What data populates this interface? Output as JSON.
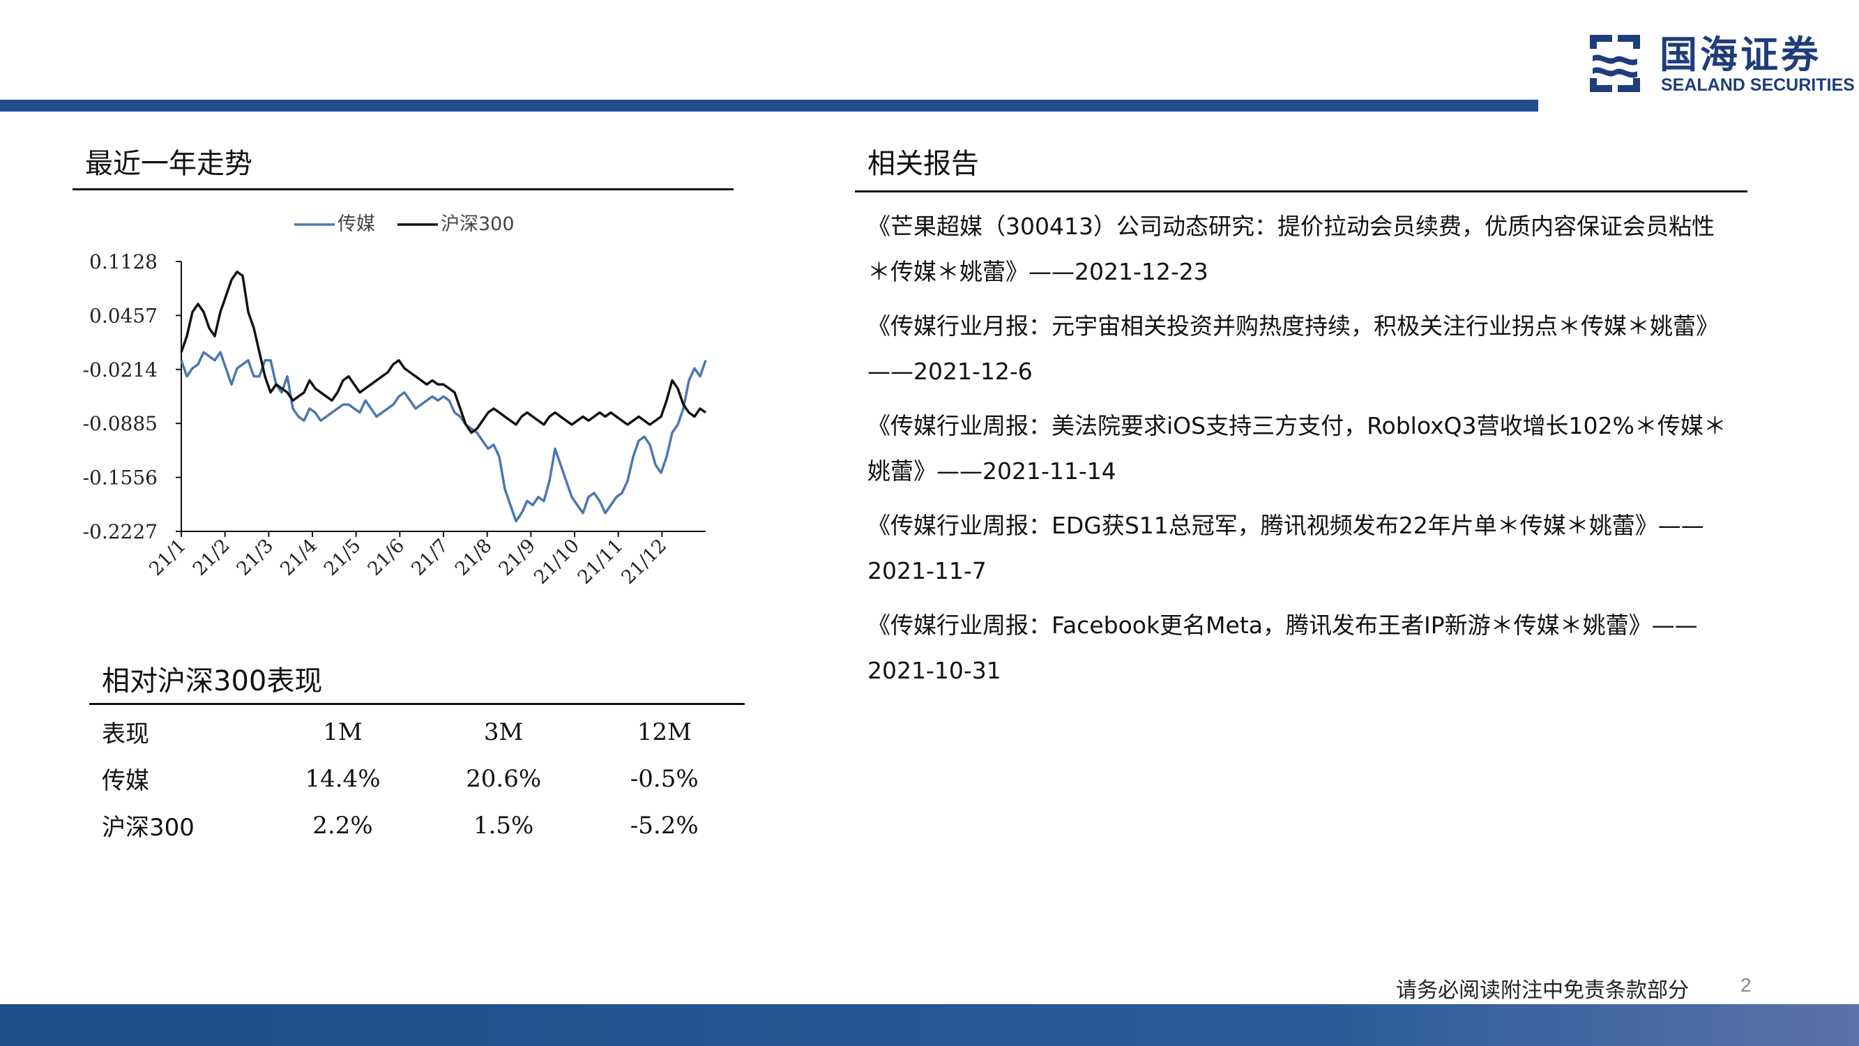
{
  "brand": {
    "name_cn": "国海证券",
    "name_en": "SEALAND SECURITIES",
    "primary_color": "#1f4e8c"
  },
  "trend_section": {
    "title": "最近一年走势"
  },
  "chart_data": {
    "type": "line",
    "title": "",
    "xlabel": "",
    "ylabel": "",
    "x_tick_labels": [
      "21/1",
      "21/2",
      "21/3",
      "21/4",
      "21/5",
      "21/6",
      "21/7",
      "21/8",
      "21/9",
      "21/10",
      "21/11",
      "21/12"
    ],
    "y_tick_labels": [
      "0.1128",
      "0.0457",
      "-0.0214",
      "-0.0885",
      "-0.1556",
      "-0.2227"
    ],
    "ylim": [
      -0.2227,
      0.1128
    ],
    "legend_position": "top-center",
    "grid": false,
    "series": [
      {
        "name": "传媒",
        "color": "#4a78b0",
        "values": [
          -0.01,
          -0.03,
          -0.02,
          -0.015,
          0.0,
          -0.005,
          -0.01,
          0.0,
          -0.02,
          -0.04,
          -0.02,
          -0.015,
          -0.01,
          -0.03,
          -0.03,
          -0.01,
          -0.01,
          -0.04,
          -0.05,
          -0.03,
          -0.07,
          -0.08,
          -0.085,
          -0.07,
          -0.075,
          -0.085,
          -0.08,
          -0.075,
          -0.07,
          -0.065,
          -0.065,
          -0.07,
          -0.075,
          -0.06,
          -0.07,
          -0.08,
          -0.075,
          -0.07,
          -0.065,
          -0.055,
          -0.05,
          -0.06,
          -0.07,
          -0.065,
          -0.06,
          -0.055,
          -0.06,
          -0.055,
          -0.06,
          -0.075,
          -0.08,
          -0.09,
          -0.095,
          -0.1,
          -0.11,
          -0.12,
          -0.115,
          -0.13,
          -0.17,
          -0.19,
          -0.21,
          -0.2,
          -0.185,
          -0.19,
          -0.18,
          -0.185,
          -0.16,
          -0.12,
          -0.14,
          -0.16,
          -0.18,
          -0.19,
          -0.2,
          -0.18,
          -0.175,
          -0.185,
          -0.2,
          -0.19,
          -0.18,
          -0.175,
          -0.16,
          -0.13,
          -0.11,
          -0.105,
          -0.115,
          -0.14,
          -0.15,
          -0.13,
          -0.1,
          -0.09,
          -0.07,
          -0.035,
          -0.02,
          -0.03,
          -0.01
        ]
      },
      {
        "name": "沪深300",
        "color": "#111111",
        "values": [
          0.0,
          0.02,
          0.05,
          0.06,
          0.05,
          0.03,
          0.02,
          0.05,
          0.07,
          0.09,
          0.1,
          0.095,
          0.05,
          0.03,
          0.0,
          -0.03,
          -0.05,
          -0.04,
          -0.045,
          -0.05,
          -0.06,
          -0.055,
          -0.05,
          -0.035,
          -0.045,
          -0.05,
          -0.055,
          -0.06,
          -0.05,
          -0.035,
          -0.03,
          -0.04,
          -0.05,
          -0.045,
          -0.04,
          -0.035,
          -0.03,
          -0.025,
          -0.015,
          -0.01,
          -0.02,
          -0.025,
          -0.03,
          -0.035,
          -0.04,
          -0.035,
          -0.04,
          -0.04,
          -0.045,
          -0.05,
          -0.07,
          -0.09,
          -0.1,
          -0.095,
          -0.085,
          -0.075,
          -0.07,
          -0.075,
          -0.08,
          -0.085,
          -0.09,
          -0.08,
          -0.075,
          -0.08,
          -0.085,
          -0.09,
          -0.08,
          -0.075,
          -0.08,
          -0.085,
          -0.09,
          -0.085,
          -0.08,
          -0.085,
          -0.08,
          -0.075,
          -0.08,
          -0.075,
          -0.08,
          -0.085,
          -0.09,
          -0.085,
          -0.08,
          -0.085,
          -0.09,
          -0.085,
          -0.08,
          -0.06,
          -0.035,
          -0.045,
          -0.065,
          -0.075,
          -0.08,
          -0.07,
          -0.075
        ]
      }
    ]
  },
  "performance": {
    "title": "相对沪深300表现",
    "headers": [
      "表现",
      "1M",
      "3M",
      "12M"
    ],
    "rows": [
      {
        "name": "传媒",
        "m1": "14.4%",
        "m3": "20.6%",
        "m12": "-0.5%"
      },
      {
        "name": "沪深300",
        "m1": "2.2%",
        "m3": "1.5%",
        "m12": "-5.2%"
      }
    ]
  },
  "related": {
    "title": "相关报告",
    "items": [
      "《芒果超媒（300413）公司动态研究：提价拉动会员续费，优质内容保证会员粘性＊传媒＊姚蕾》——2021-12-23",
      "《传媒行业月报：元宇宙相关投资并购热度持续，积极关注行业拐点＊传媒＊姚蕾》——2021-12-6",
      "《传媒行业周报：美法院要求iOS支持三方支付，RobloxQ3营收增长102%＊传媒＊姚蕾》——2021-11-14",
      "《传媒行业周报：EDG获S11总冠军，腾讯视频发布22年片单＊传媒＊姚蕾》——2021-11-7",
      "《传媒行业周报：Facebook更名Meta，腾讯发布王者IP新游＊传媒＊姚蕾》——2021-10-31"
    ]
  },
  "footer": {
    "disclaimer": "请务必阅读附注中免责条款部分",
    "page_number": "2"
  }
}
